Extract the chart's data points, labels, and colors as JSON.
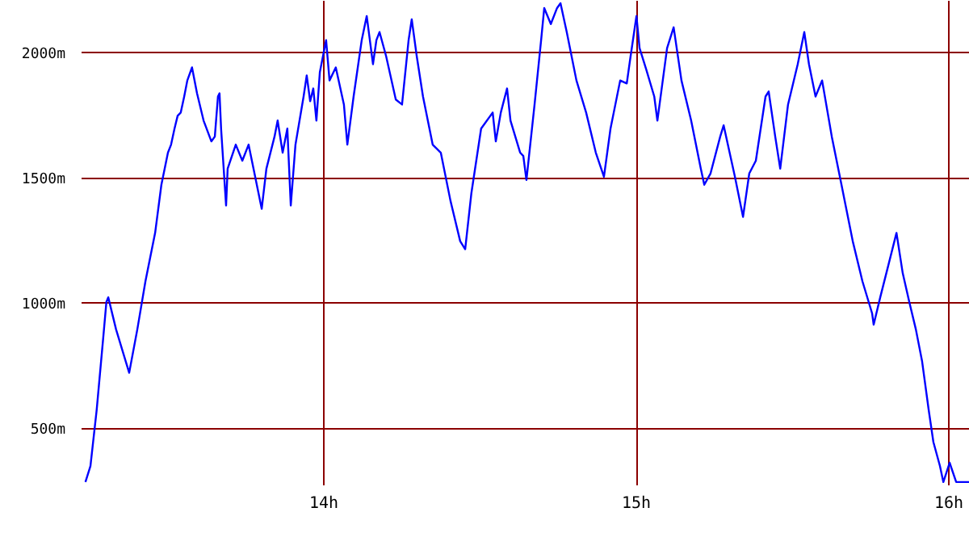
{
  "chart_data": {
    "type": "line",
    "x": [
      13.24,
      13.256,
      13.276,
      13.297,
      13.307,
      13.313,
      13.338,
      13.369,
      13.38,
      13.406,
      13.432,
      13.463,
      13.483,
      13.504,
      13.514,
      13.525,
      13.535,
      13.545,
      13.556,
      13.566,
      13.581,
      13.597,
      13.618,
      13.643,
      13.654,
      13.664,
      13.669,
      13.674,
      13.69,
      13.695,
      13.721,
      13.742,
      13.762,
      13.783,
      13.804,
      13.819,
      13.845,
      13.855,
      13.871,
      13.886,
      13.897,
      13.912,
      13.938,
      13.948,
      13.959,
      13.969,
      13.979,
      13.99,
      14.01,
      14.021,
      14.041,
      14.067,
      14.078,
      14.098,
      14.124,
      14.14,
      14.15,
      14.16,
      14.171,
      14.181,
      14.202,
      14.233,
      14.253,
      14.274,
      14.284,
      14.3,
      14.32,
      14.351,
      14.377,
      14.408,
      14.439,
      14.455,
      14.475,
      14.506,
      14.543,
      14.553,
      14.569,
      14.589,
      14.6,
      14.631,
      14.641,
      14.651,
      14.677,
      14.698,
      14.708,
      14.729,
      14.749,
      14.76,
      14.78,
      14.811,
      14.842,
      14.873,
      14.899,
      14.92,
      14.951,
      14.972,
      14.982,
      15.003,
      15.013,
      15.034,
      15.06,
      15.07,
      15.101,
      15.122,
      15.147,
      15.178,
      15.209,
      15.22,
      15.24,
      15.271,
      15.282,
      15.318,
      15.344,
      15.364,
      15.385,
      15.416,
      15.426,
      15.447,
      15.463,
      15.488,
      15.519,
      15.54,
      15.555,
      15.576,
      15.597,
      15.628,
      15.659,
      15.695,
      15.726,
      15.757,
      15.762,
      15.783,
      15.809,
      15.835,
      15.855,
      15.876,
      15.897,
      15.917,
      15.938,
      15.953,
      15.974,
      15.985,
      16.005,
      16.026,
      16.067
    ],
    "series": [
      {
        "color": "#0000ff",
        "values": [
          285,
          349,
          573,
          862,
          1003,
          1022,
          894,
          766,
          721,
          894,
          1086,
          1279,
          1471,
          1599,
          1631,
          1695,
          1746,
          1759,
          1823,
          1887,
          1939,
          1836,
          1727,
          1644,
          1663,
          1823,
          1836,
          1695,
          1388,
          1535,
          1631,
          1567,
          1631,
          1503,
          1375,
          1535,
          1663,
          1727,
          1599,
          1695,
          1388,
          1631,
          1823,
          1907,
          1804,
          1855,
          1727,
          1920,
          2048,
          1887,
          1939,
          1791,
          1631,
          1823,
          2048,
          2144,
          2048,
          1952,
          2048,
          2080,
          1984,
          1811,
          1791,
          2048,
          2131,
          1984,
          1823,
          1631,
          1599,
          1407,
          1246,
          1214,
          1439,
          1695,
          1759,
          1644,
          1759,
          1855,
          1727,
          1599,
          1586,
          1490,
          1791,
          2048,
          2176,
          2112,
          2176,
          2195,
          2080,
          1887,
          1759,
          1599,
          1503,
          1695,
          1887,
          1875,
          1964,
          2144,
          2016,
          1932,
          1823,
          1727,
          2016,
          2099,
          1887,
          1727,
          1535,
          1471,
          1516,
          1663,
          1708,
          1503,
          1343,
          1516,
          1567,
          1823,
          1843,
          1663,
          1535,
          1791,
          1952,
          2080,
          1952,
          1823,
          1887,
          1663,
          1471,
          1246,
          1086,
          958,
          913,
          1022,
          1150,
          1279,
          1118,
          1003,
          894,
          766,
          573,
          445,
          349,
          285,
          362,
          285,
          285
        ]
      }
    ],
    "xlim": [
      13.225,
      16.067
    ],
    "xticks": [
      {
        "value": 14,
        "label": "14h"
      },
      {
        "value": 15,
        "label": "15h"
      },
      {
        "value": 16,
        "label": "16h"
      }
    ],
    "ylim": [
      275,
      2208
    ],
    "yticks": [
      {
        "value": 500,
        "label": "500m"
      },
      {
        "value": 1000,
        "label": "1000m"
      },
      {
        "value": 1500,
        "label": "1500m"
      },
      {
        "value": 2000,
        "label": "2000m"
      }
    ],
    "grid": true
  }
}
